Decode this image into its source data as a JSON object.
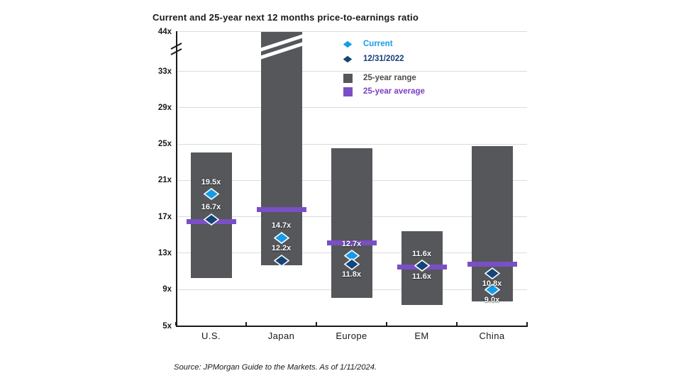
{
  "title": "Current and 25-year next 12 months price-to-earnings ratio",
  "source_note": "Source: JPMorgan Guide to the Markets. As of 1/11/2024.",
  "colors": {
    "current_diamond": "#159CE8",
    "dec_2022_diamond": "#134578",
    "range_bar_gray": "#55575B",
    "average_band_purple": "#7A4FC5",
    "gridline": "#DBDBDB",
    "axis": "#1A1A1A",
    "value_label_text": "#FFFFFF"
  },
  "legend": {
    "items": [
      {
        "id": "current",
        "label": "Current",
        "swatch": "diamond",
        "color": "#159CE8",
        "text_color": "#159CE8"
      },
      {
        "id": "dec2022",
        "label": "12/31/2022",
        "swatch": "diamond",
        "color": "#134578",
        "text_color": "#143D7A"
      },
      {
        "id": "range",
        "label": "25-year range",
        "swatch": "square",
        "color": "#55575B",
        "text_color": "#4D4E50"
      },
      {
        "id": "average",
        "label": "25-year average",
        "swatch": "square",
        "color": "#7A4FC5",
        "text_color": "#7B3FC4"
      }
    ]
  },
  "chart_data": {
    "type": "range-bar",
    "title": "Current and 25-year next 12 months price-to-earnings ratio",
    "unit_suffix": "x",
    "categories": [
      "U.S.",
      "Japan",
      "Europe",
      "EM",
      "China"
    ],
    "y_ticks": [
      {
        "value": 44,
        "label": "44x"
      },
      {
        "value": 33,
        "label": "33x"
      },
      {
        "value": 29,
        "label": "29x"
      },
      {
        "value": 25,
        "label": "25x"
      },
      {
        "value": 21,
        "label": "21x"
      },
      {
        "value": 17,
        "label": "17x"
      },
      {
        "value": 13,
        "label": "13x"
      },
      {
        "value": 9,
        "label": "9x"
      },
      {
        "value": 5,
        "label": "5x"
      }
    ],
    "axis_break": {
      "between": [
        33,
        44
      ],
      "note": "y-axis compressed above 33x; Japan range high extends beyond 44x"
    },
    "series": [
      {
        "name": "25-year range",
        "low": [
          10.3,
          11.7,
          8.1,
          7.3,
          7.7
        ],
        "high": [
          24.1,
          44.0,
          24.5,
          15.4,
          24.8
        ],
        "high_clipped": [
          false,
          true,
          false,
          false,
          false
        ]
      },
      {
        "name": "25-year average",
        "values": [
          16.5,
          17.8,
          14.1,
          11.5,
          11.8
        ]
      },
      {
        "name": "Current",
        "values": [
          19.5,
          14.7,
          12.7,
          11.6,
          9.0
        ],
        "labels": [
          "19.5x",
          "14.7x",
          "12.7x",
          "11.6x",
          "9.0x"
        ],
        "label_side": [
          "above",
          "above",
          "above",
          "above",
          "below"
        ]
      },
      {
        "name": "12/31/2022",
        "values": [
          16.7,
          12.2,
          11.8,
          11.6,
          10.8
        ],
        "labels": [
          "16.7x",
          "12.2x",
          "11.8x",
          "11.6x",
          "10.8x"
        ],
        "label_side": [
          "above",
          "above",
          "below",
          "below",
          "below"
        ]
      }
    ],
    "ylim": [
      5,
      44
    ],
    "grid": true,
    "legend_position": "upper-right-inside"
  }
}
